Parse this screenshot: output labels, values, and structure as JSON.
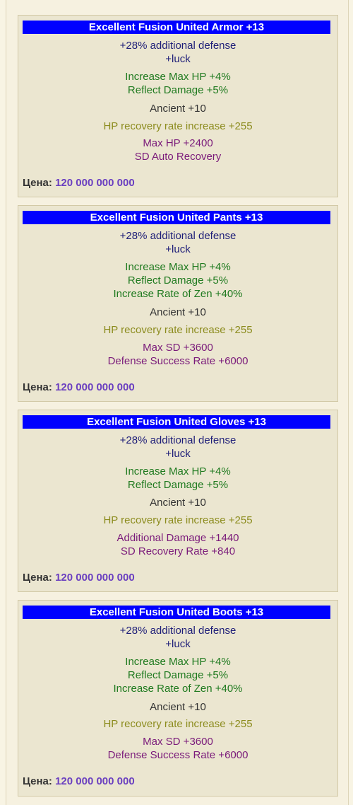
{
  "price_label": "Цена:",
  "colors": {
    "title_bg": "#0000ff",
    "defense": "#1e1e78",
    "excellent": "#1f7a1f",
    "ancient": "#333333",
    "recovery": "#8c8c1e",
    "socket": "#7a1a7a",
    "price": "#6a3fc0"
  },
  "items": [
    {
      "title": "Excellent Fusion United Armor +13",
      "defense": "+28% additional defense",
      "luck": "+luck",
      "excellent": [
        "Increase Max HP +4%",
        "Reflect Damage +5%"
      ],
      "ancient": "Ancient +10",
      "recovery": "HP recovery rate increase +255",
      "socket": [
        "Max HP +2400",
        "SD Auto Recovery"
      ],
      "price": "120 000 000 000"
    },
    {
      "title": "Excellent Fusion United Pants +13",
      "defense": "+28% additional defense",
      "luck": "+luck",
      "excellent": [
        "Increase Max HP +4%",
        "Reflect Damage +5%",
        "Increase Rate of Zen +40%"
      ],
      "ancient": "Ancient +10",
      "recovery": "HP recovery rate increase +255",
      "socket": [
        "Max SD +3600",
        "Defense Success Rate +6000"
      ],
      "price": "120 000 000 000"
    },
    {
      "title": "Excellent Fusion United Gloves +13",
      "defense": "+28% additional defense",
      "luck": "+luck",
      "excellent": [
        "Increase Max HP +4%",
        "Reflect Damage +5%"
      ],
      "ancient": "Ancient +10",
      "recovery": "HP recovery rate increase +255",
      "socket": [
        "Additional Damage +1440",
        "SD Recovery Rate +840"
      ],
      "price": "120 000 000 000"
    },
    {
      "title": "Excellent Fusion United Boots +13",
      "defense": "+28% additional defense",
      "luck": "+luck",
      "excellent": [
        "Increase Max HP +4%",
        "Reflect Damage +5%",
        "Increase Rate of Zen +40%"
      ],
      "ancient": "Ancient +10",
      "recovery": "HP recovery rate increase +255",
      "socket": [
        "Max SD +3600",
        "Defense Success Rate +6000"
      ],
      "price": "120 000 000 000"
    }
  ]
}
